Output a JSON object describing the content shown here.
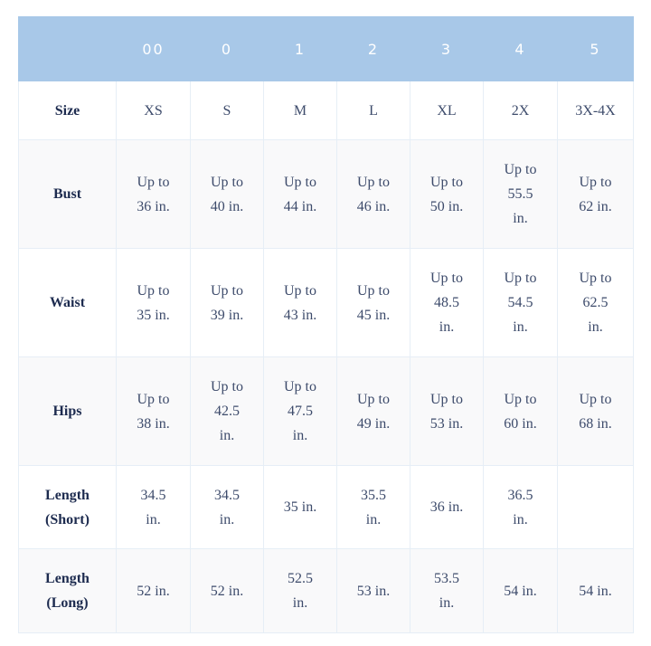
{
  "header": [
    "",
    "00",
    "0",
    "1",
    "2",
    "3",
    "4",
    "5"
  ],
  "rows": [
    {
      "label": "Size",
      "values": [
        "XS",
        "S",
        "M",
        "L",
        "XL",
        "2X",
        "3X-4X"
      ]
    },
    {
      "label": "Bust",
      "values": [
        "Up to 36 in.",
        "Up to 40 in.",
        "Up to 44 in.",
        "Up to 46 in.",
        "Up to 50 in.",
        "Up to 55.5 in.",
        "Up to 62 in."
      ]
    },
    {
      "label": "Waist",
      "values": [
        "Up to 35 in.",
        "Up to 39 in.",
        "Up to 43 in.",
        "Up to 45 in.",
        "Up to 48.5 in.",
        "Up to 54.5 in.",
        "Up to 62.5 in."
      ]
    },
    {
      "label": "Hips",
      "values": [
        "Up to 38 in.",
        "Up to 42.5 in.",
        "Up to 47.5 in.",
        "Up to 49 in.",
        "Up to 53 in.",
        "Up to 60 in.",
        "Up to 68 in."
      ]
    },
    {
      "label": "Length (Short)",
      "values": [
        "34.5 in.",
        "34.5 in.",
        "35 in.",
        "35.5 in.",
        "36 in.",
        "36.5 in.",
        ""
      ]
    },
    {
      "label": "Length (Long)",
      "values": [
        "52 in.",
        "52 in.",
        "52.5 in.",
        "53 in.",
        "53.5 in.",
        "54 in.",
        "54 in."
      ]
    }
  ],
  "colors": {
    "header_bg": "#a8c8e8",
    "label_text": "#1d2b4f",
    "value_text": "#3d4b6b",
    "alt_row": "#f9f9fa"
  }
}
